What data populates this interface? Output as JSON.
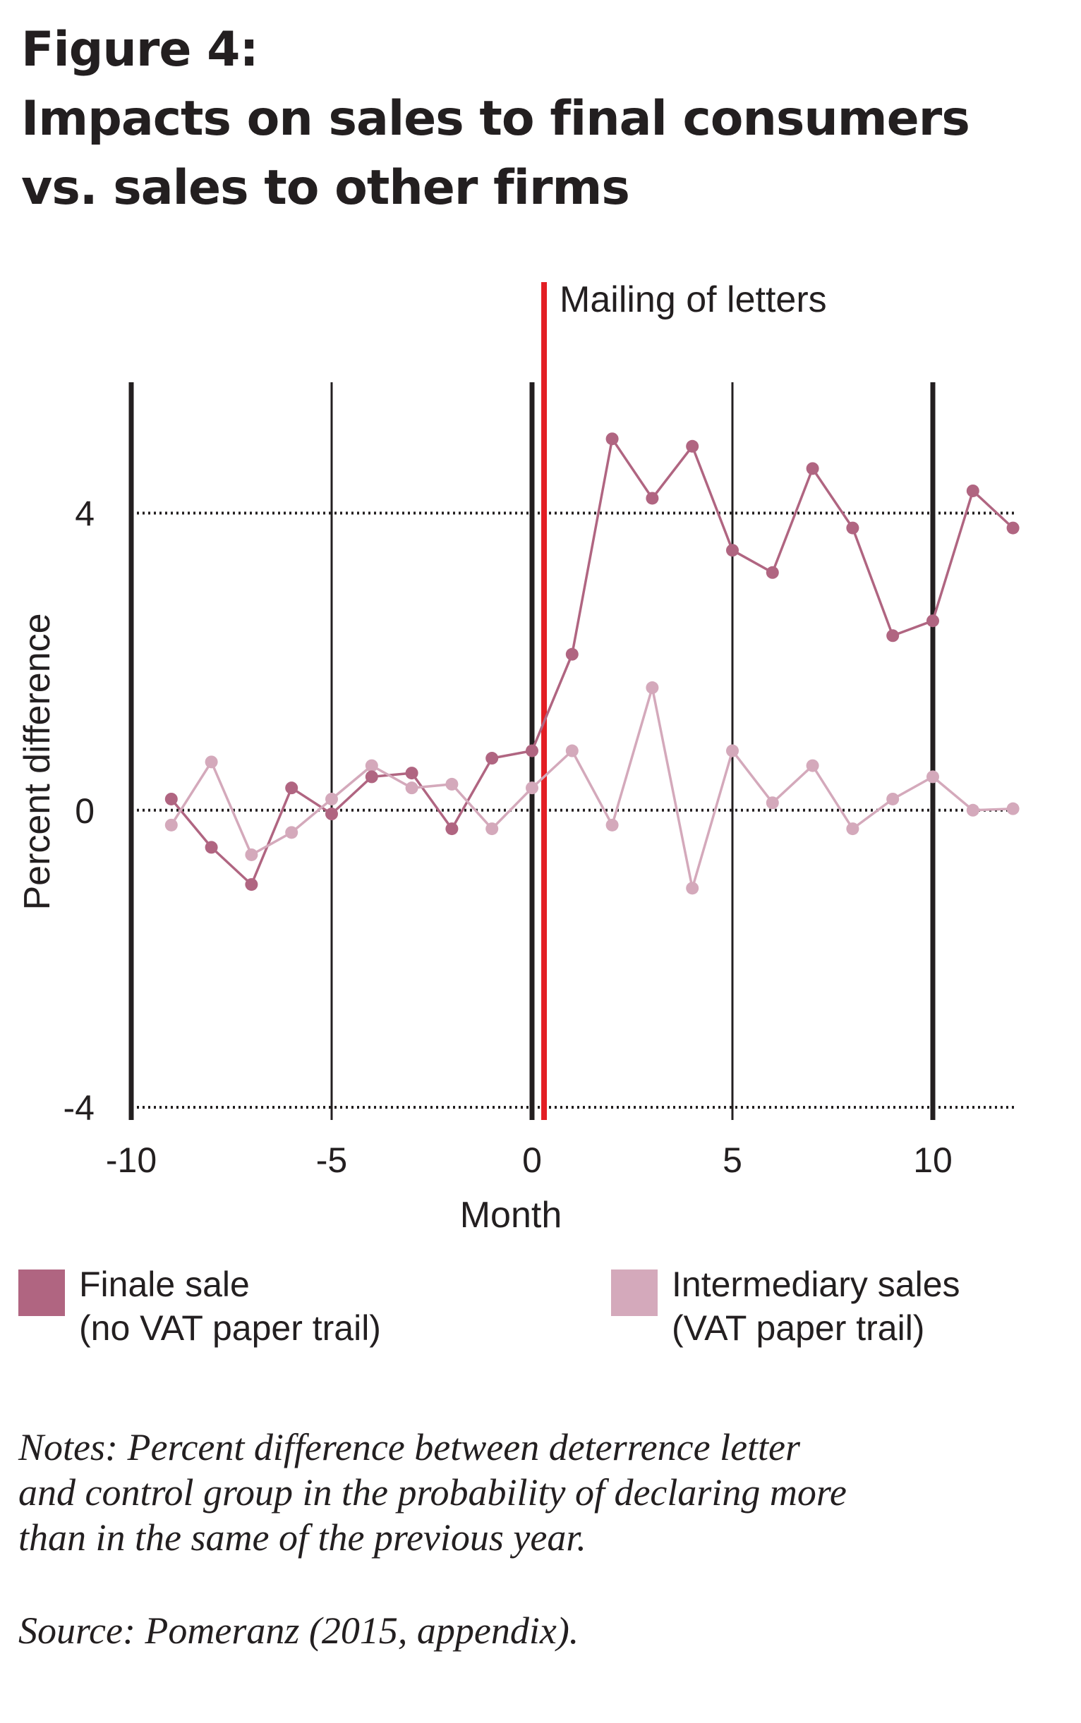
{
  "title_lines": [
    "Figure 4:",
    "Impacts on sales to final consumers",
    "vs. sales to other firms"
  ],
  "chart_data": {
    "type": "line",
    "xlabel": "Month",
    "ylabel": "Percent difference",
    "xlim": [
      -10,
      12.5
    ],
    "ylim": [
      -4,
      5.8
    ],
    "x_ticks": [
      -10,
      -5,
      0,
      5,
      10
    ],
    "y_ticks": [
      -4,
      0,
      4
    ],
    "annotation": "Mailing of letters",
    "event_x": 0.3,
    "x": [
      -9,
      -8,
      -7,
      -6,
      -5,
      -4,
      -3,
      -2,
      -1,
      0,
      1,
      2,
      3,
      4,
      5,
      6,
      7,
      8,
      9,
      10,
      11,
      12
    ],
    "series": [
      {
        "name": "Finale sale",
        "color": "#b06581",
        "values": [
          0.15,
          -0.5,
          -1.0,
          0.3,
          -0.05,
          0.45,
          0.5,
          -0.25,
          0.7,
          0.8,
          2.1,
          5.0,
          4.2,
          4.9,
          3.5,
          3.2,
          4.6,
          3.8,
          2.35,
          2.55,
          4.3,
          3.8
        ]
      },
      {
        "name": "Intermediary sales",
        "color": "#d4a9bb",
        "values": [
          -0.2,
          0.65,
          -0.6,
          -0.3,
          0.15,
          0.6,
          0.3,
          0.35,
          -0.25,
          0.3,
          0.8,
          -0.2,
          1.65,
          -1.05,
          0.8,
          0.1,
          0.6,
          -0.25,
          0.15,
          0.45,
          0.0,
          0.02
        ]
      }
    ],
    "legend": [
      {
        "line1": "Finale sale",
        "line2": "(no VAT paper trail)",
        "color": "#b06581"
      },
      {
        "line1": "Intermediary sales",
        "line2": "(VAT paper trail)",
        "color": "#d4a9bb"
      }
    ]
  },
  "notes_lines": [
    "Notes: Percent difference between deterrence letter",
    "and control group in the probability of declaring more",
    "than in the same of the previous year."
  ],
  "source": "Source: Pomeranz (2015, appendix)."
}
